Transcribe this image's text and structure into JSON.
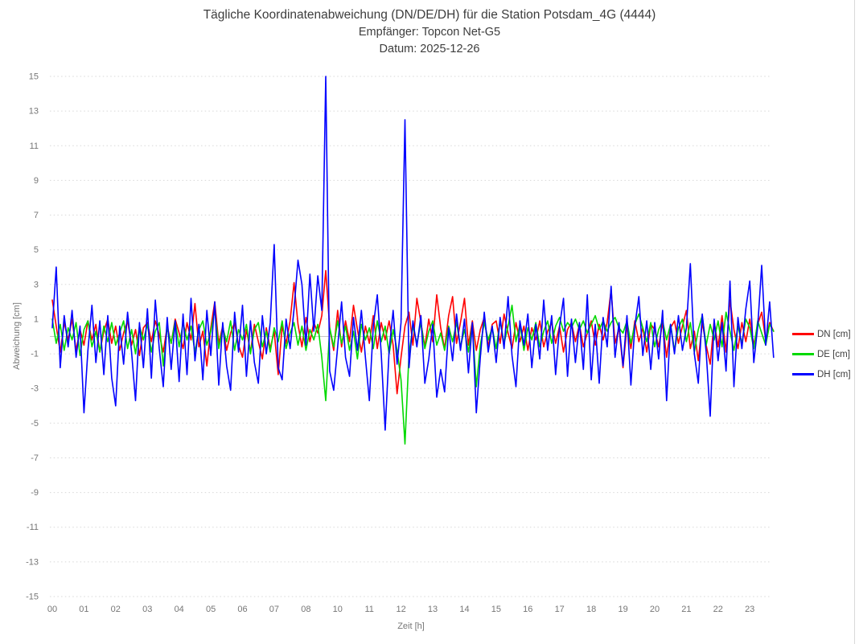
{
  "title": {
    "line1": "Tägliche Koordinatenabweichung (DN/DE/DH) für die Station Potsdam_4G (4444)",
    "line2": "Empfänger: Topcon Net-G5",
    "line3": "Datum: 2025-12-26"
  },
  "axes": {
    "y_title": "Abweichung [cm]",
    "x_title": "Zeit [h]",
    "y_tick_values": [
      15,
      13,
      11,
      9,
      7,
      5,
      3,
      1,
      -1,
      -3,
      -5,
      -7,
      -9,
      -11,
      -13,
      -15
    ],
    "x_tick_labels": [
      "00",
      "01",
      "02",
      "03",
      "04",
      "05",
      "06",
      "07",
      "08",
      "10",
      "11",
      "12",
      "13",
      "14",
      "15",
      "16",
      "17",
      "18",
      "19",
      "20",
      "21",
      "22",
      "23"
    ],
    "x_labels_note": "hour label 09 is missing in the source chart; labels are evenly spaced"
  },
  "legend": {
    "items": [
      {
        "label": "DN [cm]",
        "color": "#ff0000"
      },
      {
        "label": "DE [cm]",
        "color": "#00d900"
      },
      {
        "label": "DH [cm]",
        "color": "#0000ff"
      }
    ]
  },
  "colors": {
    "grid": "#d8d8d8",
    "zero_line": "#c6c6c6",
    "tick_text": "#767676",
    "title_text": "#3d3d3d"
  },
  "chart_data": {
    "type": "line",
    "title": "Tägliche Koordinatenabweichung (DN/DE/DH) für die Station Potsdam_4G (4444)",
    "subtitle": [
      "Empfänger: Topcon Net-G5",
      "Datum: 2025-12-26"
    ],
    "xlabel": "Zeit [h]",
    "ylabel": "Abweichung [cm]",
    "ylim": [
      -15,
      15
    ],
    "y_tick_step": 2,
    "grid": "dotted horizontal at odd values, solid line at 0",
    "legend_position": "right",
    "x_tick_labels": [
      "00",
      "01",
      "02",
      "03",
      "04",
      "05",
      "06",
      "07",
      "08",
      "10",
      "11",
      "12",
      "13",
      "14",
      "15",
      "16",
      "17",
      "18",
      "19",
      "20",
      "21",
      "22",
      "23"
    ],
    "x_start": 0,
    "x_step": 0.125,
    "x_unit": "axis label index (one unit = one labeled hour tick; label 09 absent)",
    "series": [
      {
        "name": "DN [cm]",
        "color": "#ff0000",
        "values": [
          2.1,
          0.6,
          -0.9,
          0.8,
          -0.2,
          1.0,
          -0.8,
          0.4,
          -0.5,
          0.9,
          -0.2,
          0.7,
          -0.9,
          0.3,
          1.0,
          -0.4,
          0.6,
          -0.8,
          0.2,
          0.9,
          -0.5,
          0.4,
          -1.1,
          0.5,
          0.8,
          -0.3,
          0.9,
          0.1,
          -0.9,
          0.6,
          -0.4,
          1.0,
          0.2,
          -0.7,
          0.8,
          -0.2,
          1.9,
          -0.6,
          0.3,
          -1.7,
          0.5,
          2.0,
          -0.4,
          0.6,
          -0.8,
          0.2,
          0.8,
          -0.5,
          -1.2,
          0.4,
          -0.9,
          0.7,
          -0.3,
          -1.3,
          0.5,
          -0.7,
          0.3,
          -2.2,
          0.6,
          -0.4,
          0.9,
          3.1,
          0.7,
          -0.6,
          1.1,
          -0.3,
          0.8,
          0.2,
          1.2,
          3.8,
          0.5,
          -0.8,
          1.5,
          -0.6,
          0.9,
          -0.3,
          1.8,
          0.4,
          -0.9,
          0.6,
          -0.4,
          1.2,
          -0.7,
          0.8,
          -0.2,
          0.9,
          -0.5,
          -3.3,
          -1.2,
          0.6,
          1.4,
          -0.5,
          2.2,
          0.8,
          -0.6,
          1.0,
          -0.3,
          2.4,
          0.5,
          -0.7,
          1.2,
          2.3,
          -0.4,
          0.8,
          2.2,
          -0.5,
          0.9,
          -0.8,
          0.4,
          1.1,
          -0.6,
          0.7,
          0.9,
          -0.4,
          1.3,
          0.2,
          -0.7,
          0.8,
          -0.3,
          0.6,
          -0.8,
          0.5,
          -0.2,
          0.9,
          -0.6,
          0.3,
          0.8,
          -0.4,
          0.6,
          -0.9,
          0.4,
          0.8,
          -0.3,
          0.7,
          -0.6,
          0.2,
          0.9,
          -0.5,
          0.7,
          -0.2,
          0.8,
          2.7,
          -0.4,
          0.5,
          -1.8,
          0.6,
          -0.7,
          0.9,
          -0.3,
          0.5,
          -0.9,
          0.7,
          0.4,
          -0.6,
          0.8,
          -1.2,
          0.5,
          0.9,
          -0.4,
          0.6,
          1.5,
          -0.7,
          0.3,
          -1.4,
          0.8,
          -0.5,
          -1.6,
          0.9,
          -0.6,
          1.2,
          -0.9,
          2.1,
          0.4,
          -0.7,
          0.8,
          -0.3,
          1.0,
          -0.5,
          0.7,
          1.4,
          -0.2,
          0.8,
          0.3
        ]
      },
      {
        "name": "DE [cm]",
        "color": "#00d900",
        "values": [
          1.0,
          -0.4,
          0.7,
          -0.8,
          0.5,
          -0.2,
          0.8,
          -1.1,
          0.4,
          0.9,
          -0.6,
          0.3,
          -0.9,
          0.6,
          -0.3,
          0.8,
          -0.5,
          0.2,
          0.9,
          -0.7,
          0.4,
          -1.0,
          0.6,
          -0.2,
          0.7,
          -0.9,
          0.3,
          0.8,
          -1.7,
          0.5,
          -0.4,
          0.9,
          -0.6,
          0.8,
          -0.2,
          0.6,
          -0.9,
          0.4,
          0.9,
          -0.5,
          0.3,
          1.5,
          -0.7,
          0.5,
          -0.3,
          0.9,
          -0.8,
          0.4,
          -0.2,
          0.7,
          -1.0,
          0.4,
          0.8,
          -0.6,
          0.3,
          -0.9,
          0.5,
          -0.3,
          0.9,
          -0.7,
          0.2,
          0.8,
          -0.5,
          0.6,
          -0.8,
          0.4,
          -0.2,
          0.7,
          -1.2,
          -3.7,
          0.5,
          -0.6,
          0.9,
          -0.4,
          0.6,
          -0.8,
          0.3,
          -1.3,
          0.7,
          -0.2,
          0.5,
          -0.7,
          0.9,
          -0.3,
          0.6,
          -1.0,
          0.4,
          -0.8,
          -2.5,
          -6.2,
          -1.0,
          0.6,
          -0.4,
          0.8,
          -0.7,
          0.3,
          0.9,
          -0.5,
          0.2,
          -0.8,
          0.6,
          -0.3,
          0.8,
          -0.6,
          0.4,
          -0.9,
          0.7,
          -2.9,
          -0.5,
          0.8,
          -0.2,
          0.5,
          -0.7,
          0.9,
          -0.4,
          0.6,
          1.8,
          -0.3,
          0.7,
          -0.8,
          0.5,
          -0.2,
          0.8,
          -0.6,
          0.3,
          0.9,
          -0.4,
          0.6,
          1.1,
          0.3,
          0.8,
          0.5,
          1.0,
          0.4,
          0.9,
          0.2,
          0.7,
          1.2,
          0.4,
          0.9,
          0.3,
          0.8,
          1.1,
          0.5,
          0.2,
          0.9,
          -0.4,
          0.7,
          1.3,
          0.5,
          -0.3,
          0.8,
          -0.6,
          0.4,
          0.9,
          -0.2,
          0.7,
          -0.8,
          0.5,
          1.0,
          -0.3,
          0.8,
          -0.9,
          0.4,
          1.2,
          -0.5,
          0.7,
          -0.2,
          0.9,
          -0.6,
          1.4,
          0.3,
          -0.8,
          0.6,
          -0.4,
          1.0,
          0.5,
          -0.7,
          0.9,
          0.2,
          -0.5,
          0.7,
          0.3
        ]
      },
      {
        "name": "DH [cm]",
        "color": "#0000ff",
        "values": [
          0.5,
          4.0,
          -1.8,
          1.2,
          -0.6,
          1.5,
          -1.2,
          0.6,
          -4.4,
          -0.8,
          1.8,
          -1.5,
          0.9,
          -2.2,
          1.2,
          -2.4,
          -4.0,
          0.6,
          -1.6,
          1.4,
          -0.9,
          -3.7,
          0.8,
          -1.8,
          1.6,
          -2.4,
          2.1,
          -0.7,
          -2.9,
          1.1,
          -1.9,
          0.9,
          -2.6,
          1.3,
          -2.2,
          2.2,
          -1.4,
          0.7,
          -2.5,
          1.5,
          -1.1,
          2.0,
          -2.8,
          0.8,
          -1.7,
          -3.1,
          1.4,
          -0.9,
          1.8,
          -2.3,
          0.9,
          -1.5,
          -2.7,
          1.2,
          -1.0,
          0.8,
          5.3,
          -1.8,
          -2.5,
          1.0,
          -0.7,
          1.6,
          4.4,
          3.0,
          -0.5,
          3.6,
          0.3,
          3.5,
          1.5,
          15.0,
          -2.0,
          -3.1,
          -0.6,
          2.0,
          -1.2,
          -2.3,
          1.1,
          -0.8,
          1.5,
          -1.2,
          -3.7,
          0.6,
          2.4,
          -1.0,
          -5.4,
          -0.8,
          1.5,
          -1.6,
          0.8,
          12.5,
          -1.8,
          0.9,
          -0.6,
          1.2,
          -2.7,
          -1.3,
          0.7,
          -3.5,
          -1.9,
          -3.2,
          0.5,
          -1.4,
          1.3,
          -0.8,
          1.0,
          -2.1,
          0.8,
          -4.4,
          -1.2,
          1.4,
          -0.9,
          0.6,
          -1.5,
          1.1,
          -0.7,
          2.3,
          -1.1,
          -2.9,
          0.9,
          -0.5,
          1.3,
          -1.8,
          0.7,
          -1.3,
          2.1,
          -0.8,
          1.2,
          -2.2,
          0.6,
          2.2,
          -2.3,
          1.0,
          -1.5,
          0.8,
          -1.9,
          2.4,
          -2.5,
          0.7,
          -2.7,
          1.1,
          -0.6,
          2.9,
          -1.2,
          0.8,
          -1.7,
          1.2,
          -2.8,
          0.6,
          2.3,
          -1.1,
          0.9,
          -1.9,
          0.8,
          -1.3,
          1.5,
          -3.7,
          0.7,
          -1.0,
          1.2,
          -0.8,
          0.5,
          4.2,
          -1.0,
          -2.7,
          1.3,
          -0.9,
          -4.6,
          1.0,
          -1.4,
          0.8,
          -2.0,
          3.2,
          -2.9,
          1.1,
          -0.7,
          1.6,
          3.2,
          -1.5,
          0.6,
          4.1,
          -0.5,
          2.0,
          -1.2
        ]
      }
    ]
  }
}
